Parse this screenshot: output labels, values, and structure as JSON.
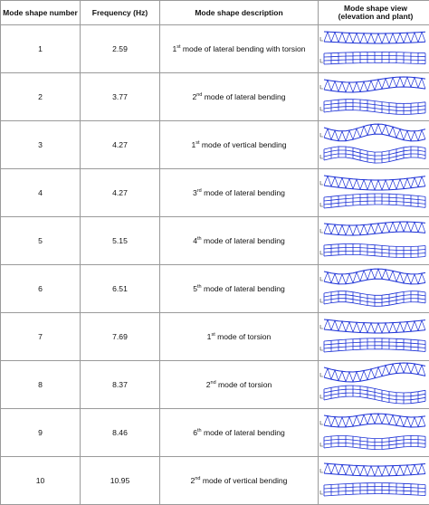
{
  "headers": {
    "mode_number": "Mode shape number",
    "frequency": "Frequency (Hz)",
    "description": "Mode shape description",
    "view_line1": "Mode shape view",
    "view_line2": "(elevation and plant)"
  },
  "rows": [
    {
      "number": "1",
      "frequency": "2.59",
      "ordinal": "1",
      "suffix": "st",
      "text": " mode of lateral bending with torsion"
    },
    {
      "number": "2",
      "frequency": "3.77",
      "ordinal": "2",
      "suffix": "nd",
      "text": " mode of lateral bending"
    },
    {
      "number": "3",
      "frequency": "4.27",
      "ordinal": "1",
      "suffix": "st",
      "text": " mode of vertical bending"
    },
    {
      "number": "4",
      "frequency": "4.27",
      "ordinal": "3",
      "suffix": "rd",
      "text": " mode of lateral bending"
    },
    {
      "number": "5",
      "frequency": "5.15",
      "ordinal": "4",
      "suffix": "th",
      "text": " mode of lateral bending"
    },
    {
      "number": "6",
      "frequency": "6.51",
      "ordinal": "5",
      "suffix": "th",
      "text": " mode of lateral bending"
    },
    {
      "number": "7",
      "frequency": "7.69",
      "ordinal": "1",
      "suffix": "st",
      "text": " mode of torsion"
    },
    {
      "number": "8",
      "frequency": "8.37",
      "ordinal": "2",
      "suffix": "nd",
      "text": " mode of torsion"
    },
    {
      "number": "9",
      "frequency": "8.46",
      "ordinal": "6",
      "suffix": "th",
      "text": " mode of lateral bending"
    },
    {
      "number": "10",
      "frequency": "10.95",
      "ordinal": "2",
      "suffix": "nd",
      "text": " mode of vertical bending"
    }
  ],
  "colors": {
    "mesh": "#1a2fd6",
    "border": "#9a9a9a"
  }
}
